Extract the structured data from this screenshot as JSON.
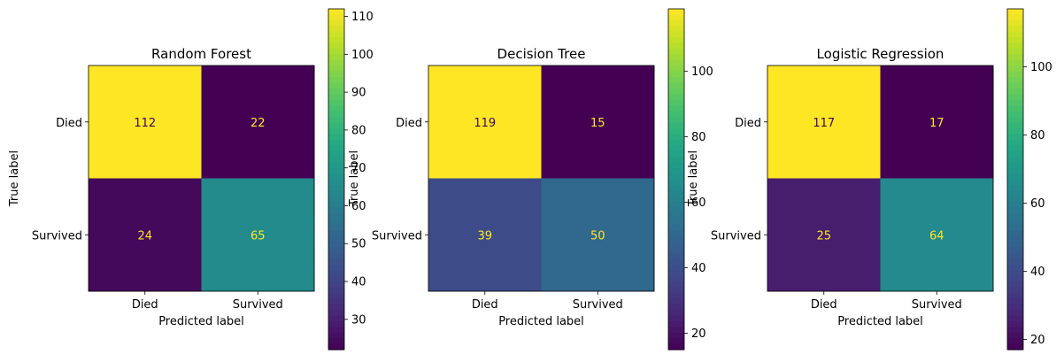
{
  "chart_data": [
    {
      "type": "heatmap",
      "title": "Random Forest",
      "xlabel": "Predicted label",
      "ylabel": "True label",
      "x_categories": [
        "Died",
        "Survived"
      ],
      "y_categories": [
        "Died",
        "Survived"
      ],
      "values": [
        [
          112,
          22
        ],
        [
          24,
          65
        ]
      ],
      "colorbar": {
        "colormap": "viridis",
        "range": [
          22,
          112
        ],
        "ticks": [
          30,
          40,
          50,
          60,
          70,
          80,
          90,
          100,
          110
        ]
      }
    },
    {
      "type": "heatmap",
      "title": "Decision Tree",
      "xlabel": "Predicted label",
      "ylabel": "True label",
      "x_categories": [
        "Died",
        "Survived"
      ],
      "y_categories": [
        "Died",
        "Survived"
      ],
      "values": [
        [
          119,
          15
        ],
        [
          39,
          50
        ]
      ],
      "colorbar": {
        "colormap": "viridis",
        "range": [
          15,
          119
        ],
        "ticks": [
          20,
          40,
          60,
          80,
          100
        ]
      }
    },
    {
      "type": "heatmap",
      "title": "Logistic Regression",
      "xlabel": "Predicted label",
      "ylabel": "True label",
      "x_categories": [
        "Died",
        "Survived"
      ],
      "y_categories": [
        "Died",
        "Survived"
      ],
      "values": [
        [
          117,
          17
        ],
        [
          25,
          64
        ]
      ],
      "colorbar": {
        "colormap": "viridis",
        "range": [
          17,
          117
        ],
        "ticks": [
          20,
          40,
          60,
          80,
          100
        ]
      }
    }
  ]
}
